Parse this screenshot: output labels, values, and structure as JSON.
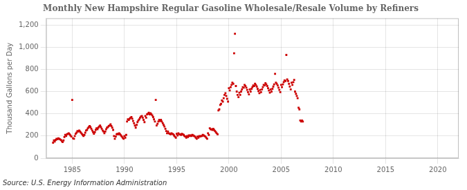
{
  "chart_data": {
    "type": "scatter",
    "title": "Monthly New Hampshire Regular Gasoline Wholesale/Resale Volume by Refiners",
    "ylabel": "Thousand Gallons per Day",
    "source": "Source: U.S. Energy Information Administration",
    "color": "#cc0000",
    "marker": "square",
    "grid": true,
    "xlim": [
      1982.5,
      2022
    ],
    "ylim": [
      0,
      1260
    ],
    "xticks": [
      1985,
      1990,
      1995,
      2000,
      2005,
      2010,
      2015,
      2020
    ],
    "yticks": [
      0,
      200,
      400,
      600,
      800,
      {
        "value": 1000,
        "label": "1,000"
      },
      {
        "value": 1200,
        "label": "1,200"
      }
    ],
    "x": [
      1983.17,
      1983.25,
      1983.33,
      1983.42,
      1983.5,
      1983.58,
      1983.67,
      1983.75,
      1983.83,
      1983.92,
      1984.0,
      1984.08,
      1984.17,
      1984.25,
      1984.33,
      1984.42,
      1984.5,
      1984.58,
      1984.67,
      1984.75,
      1984.83,
      1984.92,
      1985.0,
      1985.08,
      1985.17,
      1985.25,
      1985.33,
      1985.42,
      1985.5,
      1985.58,
      1985.67,
      1985.75,
      1985.83,
      1985.92,
      1986.0,
      1986.08,
      1986.17,
      1986.25,
      1986.33,
      1986.42,
      1986.5,
      1986.58,
      1986.67,
      1986.75,
      1986.83,
      1986.92,
      1987.0,
      1987.08,
      1987.17,
      1987.25,
      1987.33,
      1987.42,
      1987.5,
      1987.58,
      1987.67,
      1987.75,
      1987.83,
      1987.92,
      1988.0,
      1988.08,
      1988.17,
      1988.25,
      1988.33,
      1988.42,
      1988.5,
      1988.58,
      1988.67,
      1988.75,
      1988.83,
      1988.92,
      1989.0,
      1989.08,
      1989.17,
      1989.25,
      1989.33,
      1989.42,
      1989.5,
      1989.58,
      1989.67,
      1989.75,
      1989.83,
      1989.92,
      1990.0,
      1990.08,
      1990.17,
      1990.25,
      1990.33,
      1990.42,
      1990.5,
      1990.58,
      1990.67,
      1990.75,
      1990.83,
      1990.92,
      1991.0,
      1991.08,
      1991.17,
      1991.25,
      1991.33,
      1991.42,
      1991.5,
      1991.58,
      1991.67,
      1991.75,
      1991.83,
      1991.92,
      1992.0,
      1992.08,
      1992.17,
      1992.25,
      1992.33,
      1992.42,
      1992.5,
      1992.58,
      1992.67,
      1992.75,
      1992.83,
      1992.92,
      1993.0,
      1993.08,
      1993.17,
      1993.25,
      1993.33,
      1993.42,
      1993.5,
      1993.58,
      1993.67,
      1993.75,
      1993.83,
      1993.92,
      1994.0,
      1994.08,
      1994.17,
      1994.25,
      1994.33,
      1994.42,
      1994.5,
      1994.58,
      1994.67,
      1994.75,
      1994.83,
      1994.92,
      1995.0,
      1995.08,
      1995.17,
      1995.25,
      1995.33,
      1995.42,
      1995.5,
      1995.58,
      1995.67,
      1995.75,
      1995.83,
      1995.92,
      1996.0,
      1996.08,
      1996.17,
      1996.25,
      1996.33,
      1996.42,
      1996.5,
      1996.58,
      1996.67,
      1996.75,
      1996.83,
      1996.92,
      1997.0,
      1997.08,
      1997.17,
      1997.25,
      1997.33,
      1997.42,
      1997.5,
      1997.58,
      1997.67,
      1997.75,
      1997.83,
      1997.92,
      1998.0,
      1998.08,
      1998.17,
      1998.25,
      1998.33,
      1998.42,
      1998.5,
      1998.58,
      1998.67,
      1998.75,
      1998.83,
      1998.92,
      1999.0,
      1999.08,
      1999.17,
      1999.25,
      1999.33,
      1999.42,
      1999.5,
      1999.58,
      1999.67,
      1999.75,
      1999.83,
      1999.92,
      2000.0,
      2000.08,
      2000.17,
      2000.25,
      2000.33,
      2000.42,
      2000.5,
      2000.58,
      2000.67,
      2000.75,
      2000.83,
      2000.92,
      2001.0,
      2001.08,
      2001.17,
      2001.25,
      2001.33,
      2001.42,
      2001.5,
      2001.58,
      2001.67,
      2001.75,
      2001.83,
      2001.92,
      2002.0,
      2002.08,
      2002.17,
      2002.25,
      2002.33,
      2002.42,
      2002.5,
      2002.58,
      2002.67,
      2002.75,
      2002.83,
      2002.92,
      2003.0,
      2003.08,
      2003.17,
      2003.25,
      2003.33,
      2003.42,
      2003.5,
      2003.58,
      2003.67,
      2003.75,
      2003.83,
      2003.92,
      2004.0,
      2004.08,
      2004.17,
      2004.25,
      2004.33,
      2004.42,
      2004.5,
      2004.58,
      2004.67,
      2004.75,
      2004.83,
      2004.92,
      2005.0,
      2005.08,
      2005.17,
      2005.25,
      2005.33,
      2005.42,
      2005.5,
      2005.58,
      2005.67,
      2005.75,
      2005.83,
      2005.92,
      2006.0,
      2006.08,
      2006.17,
      2006.25,
      2006.33,
      2006.42,
      2006.5,
      2006.58,
      2006.67,
      2006.75,
      2006.83,
      2006.92,
      2007.0,
      2007.08
    ],
    "values": [
      140,
      160,
      150,
      165,
      175,
      170,
      180,
      175,
      170,
      165,
      155,
      145,
      160,
      190,
      210,
      200,
      215,
      220,
      225,
      215,
      205,
      195,
      525,
      180,
      175,
      200,
      220,
      230,
      245,
      240,
      250,
      240,
      230,
      220,
      210,
      200,
      210,
      230,
      250,
      255,
      270,
      280,
      290,
      280,
      265,
      250,
      235,
      220,
      235,
      255,
      270,
      260,
      275,
      285,
      295,
      280,
      265,
      250,
      240,
      225,
      240,
      260,
      275,
      280,
      290,
      295,
      305,
      290,
      275,
      255,
      200,
      175,
      195,
      215,
      220,
      215,
      225,
      215,
      205,
      195,
      185,
      175,
      200,
      185,
      210,
      330,
      350,
      345,
      355,
      365,
      370,
      355,
      335,
      315,
      295,
      275,
      300,
      325,
      340,
      350,
      365,
      375,
      380,
      365,
      345,
      325,
      380,
      365,
      395,
      400,
      410,
      395,
      405,
      395,
      385,
      370,
      350,
      330,
      525,
      295,
      310,
      330,
      345,
      335,
      345,
      330,
      315,
      300,
      285,
      265,
      245,
      225,
      240,
      225,
      220,
      215,
      225,
      220,
      215,
      205,
      195,
      185,
      220,
      205,
      225,
      215,
      215,
      210,
      220,
      215,
      210,
      200,
      195,
      185,
      200,
      190,
      205,
      200,
      205,
      200,
      210,
      205,
      200,
      195,
      185,
      175,
      195,
      185,
      200,
      195,
      200,
      200,
      210,
      205,
      200,
      195,
      185,
      175,
      225,
      210,
      270,
      260,
      260,
      255,
      265,
      255,
      245,
      235,
      225,
      215,
      430,
      440,
      480,
      490,
      520,
      510,
      540,
      570,
      585,
      560,
      535,
      510,
      630,
      610,
      640,
      660,
      680,
      670,
      945,
      1120,
      650,
      600,
      570,
      550,
      590,
      570,
      600,
      620,
      640,
      635,
      660,
      650,
      635,
      615,
      595,
      575,
      620,
      600,
      625,
      640,
      655,
      650,
      670,
      660,
      645,
      625,
      605,
      585,
      615,
      595,
      620,
      640,
      660,
      655,
      675,
      665,
      650,
      630,
      610,
      590,
      620,
      600,
      625,
      645,
      665,
      760,
      680,
      670,
      655,
      635,
      615,
      595,
      660,
      640,
      665,
      685,
      700,
      695,
      930,
      710,
      695,
      670,
      645,
      620,
      680,
      660,
      685,
      705,
      600,
      580,
      560,
      540,
      455,
      440,
      340,
      330,
      340,
      330
    ]
  }
}
